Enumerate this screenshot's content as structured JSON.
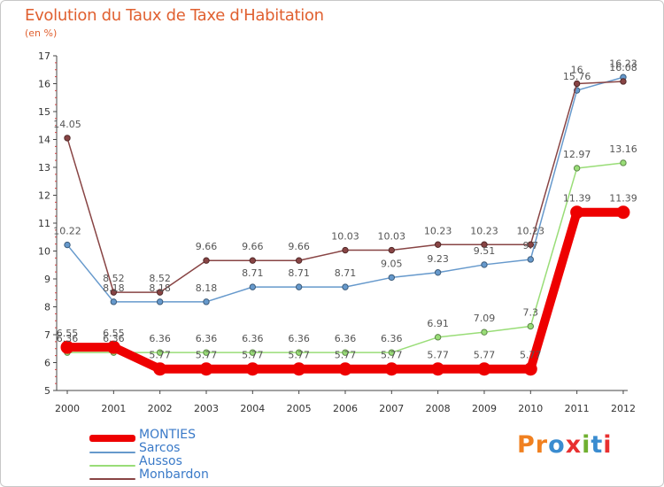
{
  "page": {
    "title": "Evolution du Taux de Taxe d'Habitation",
    "unit": "(en %)",
    "brand": "Proxiti",
    "brand_colors": [
      "#f08020",
      "#f08020",
      "#3a8cd0",
      "#e83030",
      "#70b030",
      "#3a8cd0",
      "#e83030"
    ]
  },
  "chart_data": {
    "type": "line",
    "title": "Evolution du Taux de Taxe d'Habitation",
    "ylabel": "(en %)",
    "xlabel": "",
    "ylim": [
      5,
      17
    ],
    "yticks": [
      5,
      6,
      7,
      8,
      9,
      10,
      11,
      12,
      13,
      14,
      15,
      16,
      17
    ],
    "x": [
      "2000",
      "2001",
      "2002",
      "2003",
      "2004",
      "2005",
      "2006",
      "2007",
      "2008",
      "2009",
      "2010",
      "2011",
      "2012"
    ],
    "legend_position": "bottom-left",
    "grid": false,
    "series": [
      {
        "name": "MONTIES",
        "color": "#ee0000",
        "values": [
          6.55,
          6.55,
          5.77,
          5.77,
          5.77,
          5.77,
          5.77,
          5.77,
          5.77,
          5.77,
          5.77,
          11.39,
          11.39
        ],
        "labels": [
          "6.55",
          "6.55",
          "5.77",
          "5.77",
          "5.77",
          "5.77",
          "5.77",
          "5.77",
          "5.77",
          "5.77",
          "5.77",
          "11.39",
          "11.39"
        ]
      },
      {
        "name": "Sarcos",
        "color": "#6699cc",
        "values": [
          10.22,
          8.18,
          8.18,
          8.18,
          8.71,
          8.71,
          8.71,
          9.05,
          9.23,
          9.51,
          9.7,
          15.76,
          16.23
        ],
        "labels": [
          "10.22",
          "8.18",
          "8.18",
          "8.18",
          "8.71",
          "8.71",
          "8.71",
          "9.05",
          "9.23",
          "9.51",
          "9.7",
          "15.76",
          "16.23"
        ]
      },
      {
        "name": "Aussos",
        "color": "#99dd77",
        "values": [
          6.36,
          6.36,
          6.36,
          6.36,
          6.36,
          6.36,
          6.36,
          6.36,
          6.91,
          7.09,
          7.3,
          12.97,
          13.16
        ],
        "labels": [
          "6.36",
          "6.36",
          "6.36",
          "6.36",
          "6.36",
          "6.36",
          "6.36",
          "6.36",
          "6.91",
          "7.09",
          "7.3",
          "12.97",
          "13.16"
        ]
      },
      {
        "name": "Monbardon",
        "color": "#884444",
        "values": [
          14.05,
          8.52,
          8.52,
          9.66,
          9.66,
          9.66,
          10.03,
          10.03,
          10.23,
          10.23,
          10.23,
          16,
          16.08
        ],
        "labels": [
          "14.05",
          "8.52",
          "8.52",
          "9.66",
          "9.66",
          "9.66",
          "10.03",
          "10.03",
          "10.23",
          "10.23",
          "10.23",
          "16",
          "16.08"
        ]
      }
    ]
  }
}
